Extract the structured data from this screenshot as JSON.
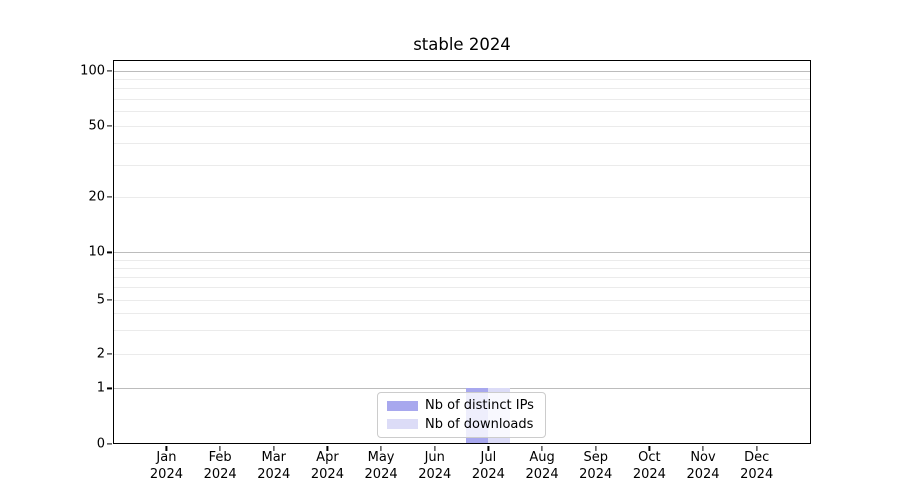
{
  "chart_data": {
    "type": "bar",
    "title": "stable 2024",
    "months": [
      "Jan",
      "Feb",
      "Mar",
      "Apr",
      "May",
      "Jun",
      "Jul",
      "Aug",
      "Sep",
      "Oct",
      "Nov",
      "Dec"
    ],
    "year": "2024",
    "categories": [
      "Jan 2024",
      "Feb 2024",
      "Mar 2024",
      "Apr 2024",
      "May 2024",
      "Jun 2024",
      "Jul 2024",
      "Aug 2024",
      "Sep 2024",
      "Oct 2024",
      "Nov 2024",
      "Dec 2024"
    ],
    "series": [
      {
        "name": "Nb of distinct IPs",
        "color": "#a8a8ee",
        "values": [
          0,
          0,
          0,
          0,
          0,
          0,
          1,
          0,
          0,
          0,
          0,
          0
        ]
      },
      {
        "name": "Nb of downloads",
        "color": "#dcdcf7",
        "values": [
          0,
          0,
          0,
          0,
          0,
          0,
          1,
          0,
          0,
          0,
          0,
          0
        ]
      }
    ],
    "yscale": "symlog",
    "yticks": [
      100,
      50,
      20,
      10,
      5,
      2,
      1,
      0
    ],
    "ylim": [
      0,
      115
    ],
    "grid": true,
    "legend_position": "lower center"
  }
}
